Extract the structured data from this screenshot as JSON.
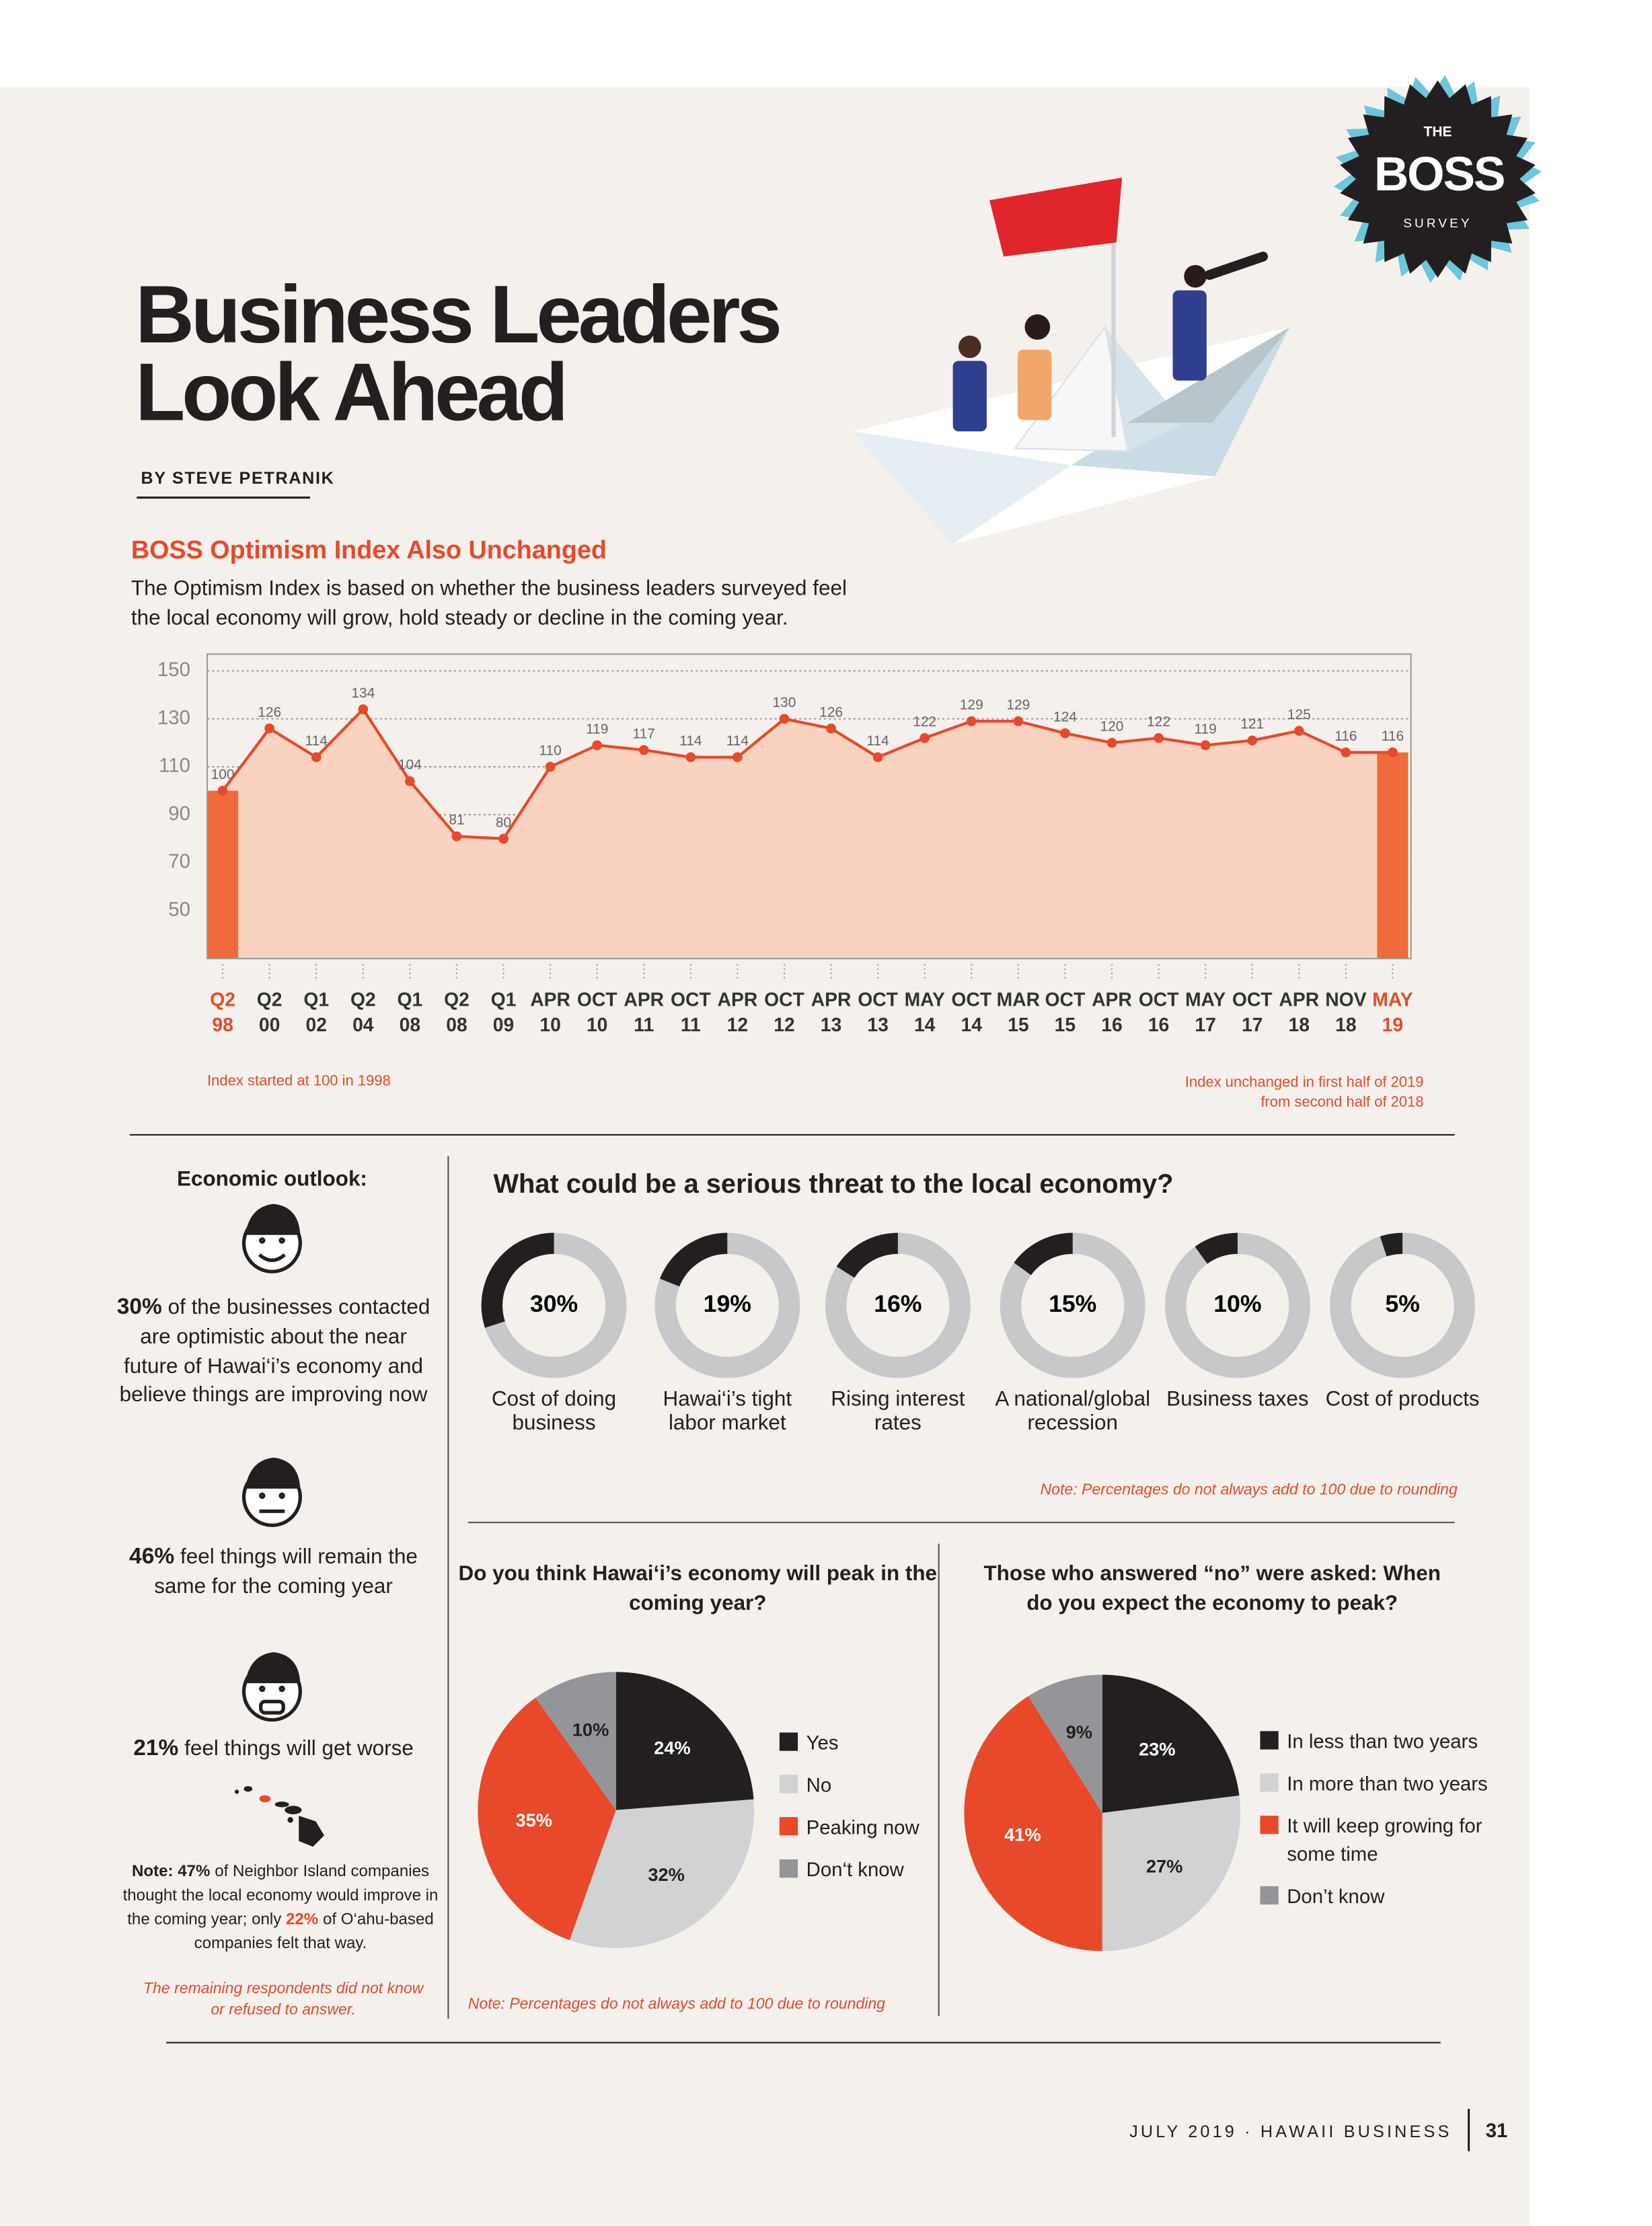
{
  "header": {
    "title": "Business Leaders Look Ahead",
    "byline": "BY STEVE PETRANIK",
    "badge": [
      "THE",
      "BOSS",
      "SURVEY"
    ]
  },
  "chart_data": [
    {
      "type": "line",
      "title": "BOSS Optimism Index Also Unchanged",
      "subtitle": "The Optimism Index is based on whether the business leaders surveyed feel the local economy will grow, hold steady or decline in the coming year.",
      "categories": [
        [
          "Q2",
          "98"
        ],
        [
          "Q2",
          "00"
        ],
        [
          "Q1",
          "02"
        ],
        [
          "Q2",
          "04"
        ],
        [
          "Q1",
          "08"
        ],
        [
          "Q2",
          "08"
        ],
        [
          "Q1",
          "09"
        ],
        [
          "APR",
          "10"
        ],
        [
          "OCT",
          "10"
        ],
        [
          "APR",
          "11"
        ],
        [
          "OCT",
          "11"
        ],
        [
          "APR",
          "12"
        ],
        [
          "OCT",
          "12"
        ],
        [
          "APR",
          "13"
        ],
        [
          "OCT",
          "13"
        ],
        [
          "MAY",
          "14"
        ],
        [
          "OCT",
          "14"
        ],
        [
          "MAR",
          "15"
        ],
        [
          "OCT",
          "15"
        ],
        [
          "APR",
          "16"
        ],
        [
          "OCT",
          "16"
        ],
        [
          "MAY",
          "17"
        ],
        [
          "OCT",
          "17"
        ],
        [
          "APR",
          "18"
        ],
        [
          "NOV",
          "18"
        ],
        [
          "MAY",
          "19"
        ]
      ],
      "values": [
        100,
        126,
        114,
        134,
        104,
        81,
        80,
        110,
        119,
        117,
        114,
        114,
        130,
        126,
        114,
        122,
        129,
        129,
        124,
        120,
        122,
        119,
        121,
        125,
        116,
        116
      ],
      "color": "#e8492a",
      "area_color": "#f9d3bf",
      "highlight_color": "#ef6b3a",
      "ylim": [
        30,
        157
      ],
      "yticks": [
        50,
        70,
        90,
        110,
        130,
        150
      ],
      "grid": true,
      "annotations": [
        "Index started at 100 in 1998",
        "Index unchanged in first half of 2019 from second half of 2018"
      ]
    },
    {
      "type": "donut",
      "title": "What could be a serious threat to the local economy?",
      "categories": [
        "Cost of doing business",
        "Hawai‘i’s tight labor market",
        "Rising interest rates",
        "A national/global recession",
        "Business taxes",
        "Cost of products"
      ],
      "values": [
        30,
        19,
        16,
        15,
        10,
        5
      ],
      "value_labels": [
        "30%",
        "19%",
        "16%",
        "15%",
        "10%",
        "5%"
      ],
      "ylim": [
        0,
        100
      ],
      "color": "#231f20",
      "track_color": "#c7c8ca",
      "note": "Note: Percentages do not always add to 100 due to rounding"
    },
    {
      "type": "pie",
      "title": "Do you think Hawai‘i’s economy will peak in the coming year?",
      "categories": [
        "Yes",
        "No",
        "Peaking now",
        "Don‘t know"
      ],
      "values": [
        24,
        32,
        35,
        10
      ],
      "value_labels": [
        "24%",
        "32%",
        "35%",
        "10%"
      ],
      "colors": [
        "#231f20",
        "#d1d2d4",
        "#e8492a",
        "#939598"
      ],
      "note": "Note: Percentages do not always add to 100 due to rounding"
    },
    {
      "type": "pie",
      "title": "Those who answered “no” were asked: When do you expect the economy to peak?",
      "categories": [
        "In less than two years",
        "In more than two years",
        "It will keep growing for some time",
        "Don’t know"
      ],
      "values": [
        23,
        27,
        41,
        9
      ],
      "value_labels": [
        "23%",
        "27%",
        "41%",
        "9%"
      ],
      "colors": [
        "#231f20",
        "#d1d2d4",
        "#e8492a",
        "#939598"
      ]
    }
  ],
  "outlook": {
    "title": "Economic outlook:",
    "items": [
      {
        "value": "30%",
        "text": " of the businesses contacted are optimistic about the near future of Hawai‘i’s economy and believe things are improving now"
      },
      {
        "value": "46%",
        "text": " feel things will remain the same for the coming year"
      },
      {
        "value": "21%",
        "text": " feel things will get worse"
      }
    ],
    "note": [
      {
        "text": "Note: 47%",
        "style": "bold"
      },
      {
        "text": " of Neighbor Island companies thought the local economy would improve in the coming year; only ",
        "style": "plain"
      },
      {
        "text": "22%",
        "style": "orange"
      },
      {
        "text": " of O‘ahu-based companies felt that way.",
        "style": "plain"
      }
    ],
    "remaining": "The remaining respondents did not know or refused to answer."
  },
  "footer": {
    "issue": "JULY 2019 · HAWAII BUSINESS",
    "page": "31"
  }
}
